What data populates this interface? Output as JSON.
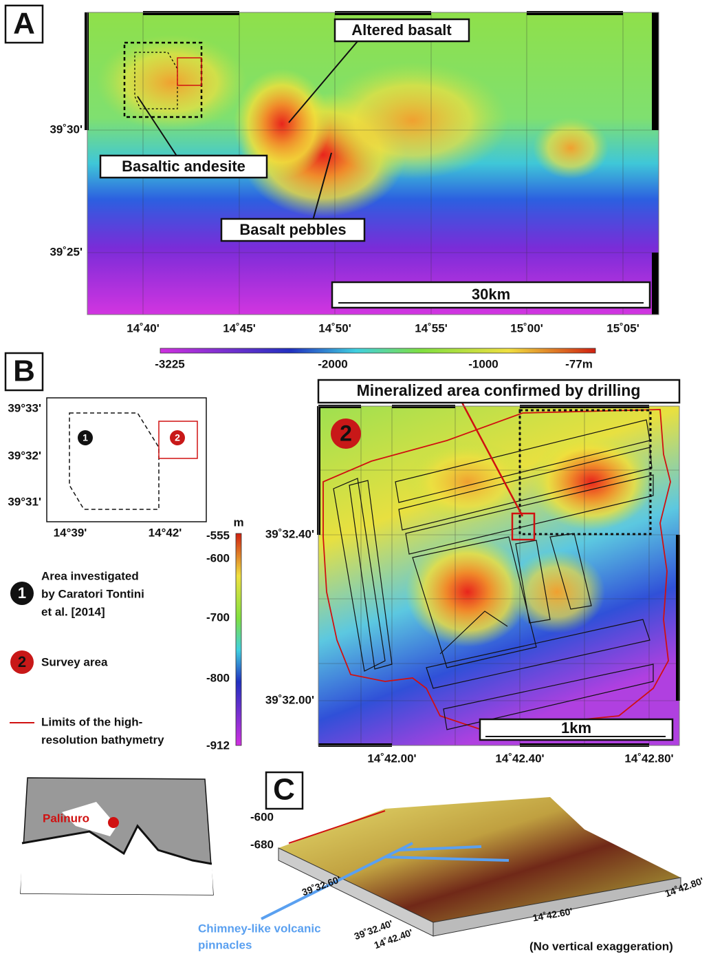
{
  "panel_a": {
    "label": "A",
    "annotations": [
      "Altered basalt",
      "Basaltic andesite",
      "Basalt pebbles"
    ],
    "lat_labels": [
      "39˚30'",
      "39˚25'"
    ],
    "lon_labels": [
      "14˚40'",
      "14˚45'",
      "14˚50'",
      "14˚55'",
      "15˚00'",
      "15˚05'"
    ],
    "scale_bar": "30km",
    "colorbar_labels": [
      "-3225",
      "-2000",
      "-1000",
      "-77m"
    ]
  },
  "panel_b": {
    "label": "B",
    "inset": {
      "lat_labels": [
        "39°33'",
        "39°32'",
        "39°31'"
      ],
      "lon_labels": [
        "14°39'",
        "14°42'"
      ],
      "markers": [
        "1",
        "2"
      ]
    },
    "colorbar": {
      "unit": "m",
      "labels": [
        "-555",
        "-600",
        "-700",
        "-800",
        "-912"
      ]
    },
    "legend": {
      "area_investigated": [
        "Area investigated",
        "by Caratori Tontini",
        "et al. [2014]"
      ],
      "survey_area": "Survey area",
      "limits": [
        "Limits of the high-",
        "resolution bathymetry"
      ]
    },
    "map": {
      "title": "Mineralized area confirmed by drilling",
      "marker": "2",
      "lat_labels": [
        "39˚32.40'",
        "39˚32.00'"
      ],
      "lon_labels": [
        "14˚42.00'",
        "14˚42.40'",
        "14˚42.80'"
      ],
      "scale_bar": "1km"
    }
  },
  "locator": {
    "place": "Palinuro"
  },
  "panel_c": {
    "label": "C",
    "depth_labels": [
      "-600",
      "-680"
    ],
    "lat_labels": [
      "39˚32.60'",
      "39˚32.40'"
    ],
    "lon_labels": [
      "14˚42.40'",
      "14˚42.60'",
      "14˚42.80'"
    ],
    "annotation": [
      "Chimney-like volcanic",
      "pinnacles"
    ],
    "note": "(No vertical exaggeration)"
  }
}
